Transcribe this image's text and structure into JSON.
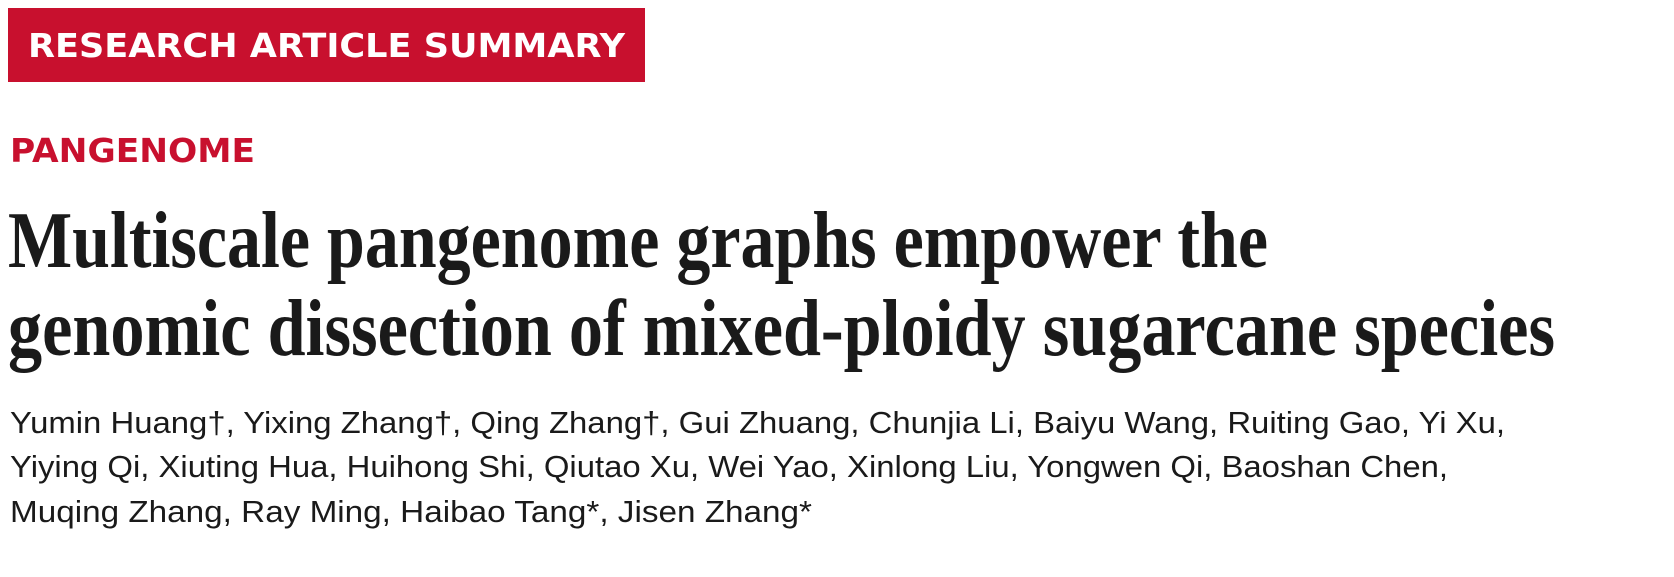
{
  "header": {
    "banner": "RESEARCH ARTICLE SUMMARY",
    "section": "PANGENOME"
  },
  "title": {
    "lines": [
      "Multiscale pangenome graphs empower the",
      "genomic dissection of mixed-ploidy sugarcane species"
    ]
  },
  "authors": {
    "lines": [
      "Yumin Huang†, Yixing Zhang†, Qing Zhang†, Gui Zhuang, Chunjia Li, Baiyu Wang, Ruiting Gao, Yi Xu,",
      "Yiying Qi, Xiuting Hua, Huihong Shi, Qiutao Xu, Wei Yao, Xinlong Liu, Yongwen Qi, Baoshan Chen,",
      "Muqing Zhang, Ray Ming, Haibao Tang*, Jisen Zhang*"
    ]
  }
}
